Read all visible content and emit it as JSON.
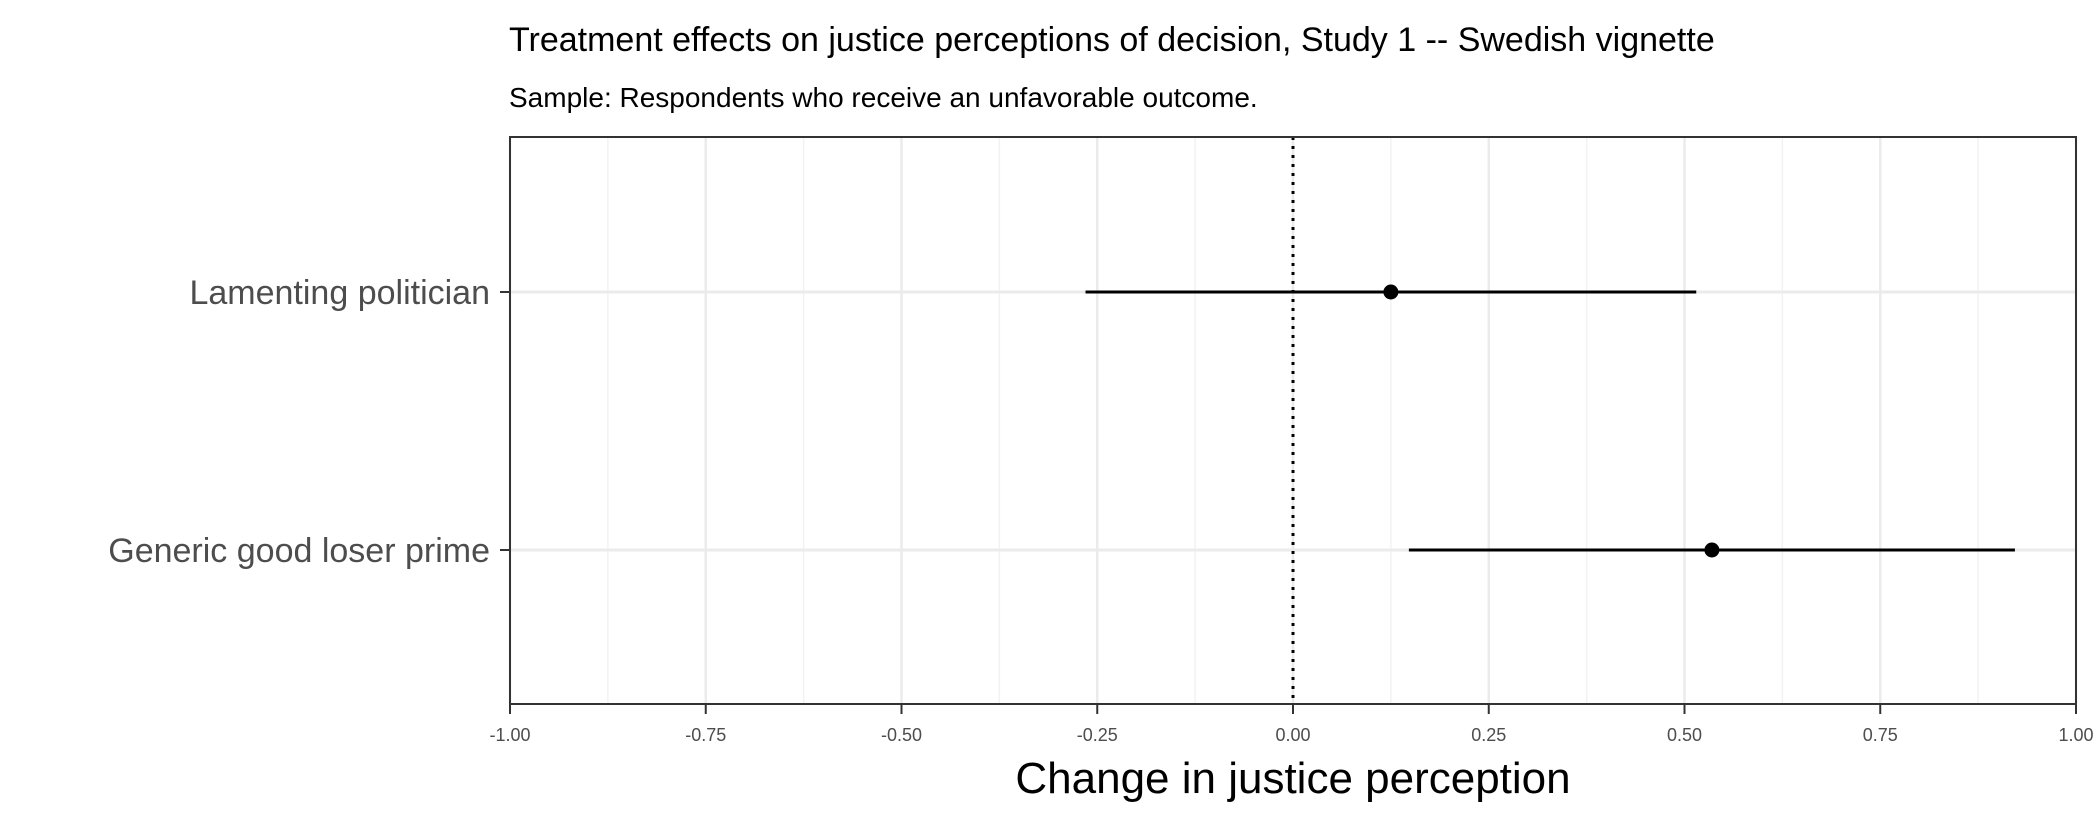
{
  "chart_data": {
    "type": "scatter",
    "subtype": "coefficient-plot",
    "title": "Treatment effects on justice perceptions of decision, Study 1 -- Swedish vignette",
    "subtitle": "Sample: Respondents who receive an unfavorable outcome.",
    "xlabel": "Change in justice perception",
    "ylabel": "",
    "xlim": [
      -1.0,
      1.0
    ],
    "x_ticks": [
      -1.0,
      -0.75,
      -0.5,
      -0.25,
      0.0,
      0.25,
      0.5,
      0.75,
      1.0
    ],
    "x_tick_labels": [
      "-1.00",
      "-0.75",
      "-0.50",
      "-0.25",
      "0.00",
      "0.25",
      "0.50",
      "0.75",
      "1.00"
    ],
    "reference_line": 0.0,
    "grid": true,
    "points": [
      {
        "label": "Lamenting politician",
        "estimate": 0.125,
        "ci_low": -0.265,
        "ci_high": 0.515
      },
      {
        "label": "Generic good loser prime",
        "estimate": 0.535,
        "ci_low": 0.148,
        "ci_high": 0.922
      }
    ],
    "colors": {
      "point": "#000000",
      "grid": "#ebebeb",
      "axis": "#333333",
      "tick_text": "#4d4d4d"
    }
  }
}
